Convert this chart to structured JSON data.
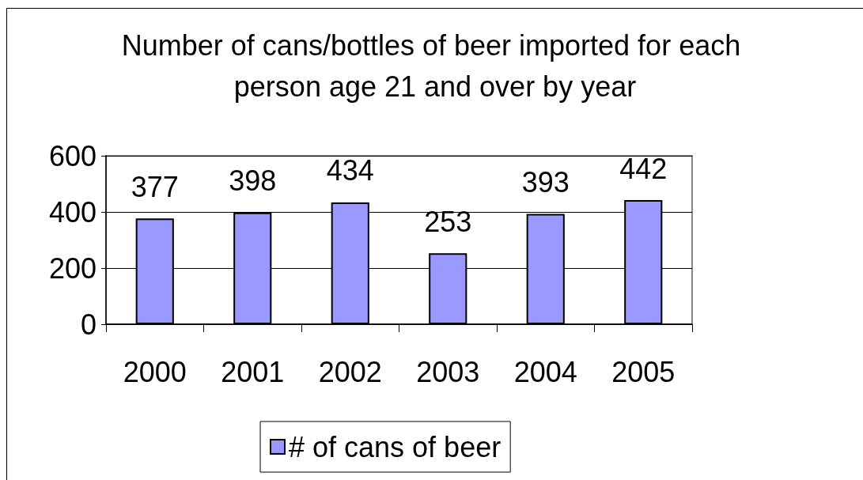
{
  "chart_data": {
    "type": "bar",
    "title": "Number of cans/bottles of beer imported for each person age 21 and over by year",
    "categories": [
      "2000",
      "2001",
      "2002",
      "2003",
      "2004",
      "2005"
    ],
    "series": [
      {
        "name": "# of cans of beer",
        "color": "#9999ff",
        "values": [
          377,
          398,
          434,
          253,
          393,
          442
        ]
      }
    ],
    "ylim": [
      0,
      600
    ],
    "yticks": [
      0,
      200,
      400,
      600
    ],
    "grid": "y",
    "legend": "bottom",
    "data_labels": true
  }
}
